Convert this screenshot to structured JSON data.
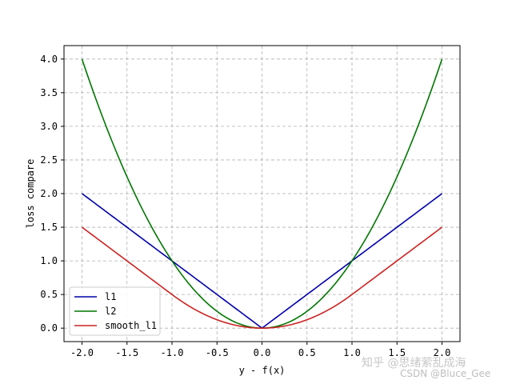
{
  "chart_data": {
    "type": "line",
    "xlabel": "y - f(x)",
    "ylabel": "loss compare",
    "xlim": [
      -2.2,
      2.2
    ],
    "ylim": [
      -0.2,
      4.2
    ],
    "xticks": [
      "-2.0",
      "-1.5",
      "-1.0",
      "-0.5",
      "0.0",
      "0.5",
      "1.0",
      "1.5",
      "2.0"
    ],
    "xtick_values": [
      -2.0,
      -1.5,
      -1.0,
      -0.5,
      0.0,
      0.5,
      1.0,
      1.5,
      2.0
    ],
    "yticks": [
      "0.0",
      "0.5",
      "1.0",
      "1.5",
      "2.0",
      "2.5",
      "3.0",
      "3.5",
      "4.0"
    ],
    "ytick_values": [
      0.0,
      0.5,
      1.0,
      1.5,
      2.0,
      2.5,
      3.0,
      3.5,
      4.0
    ],
    "grid": true,
    "legend_position": "lower-left",
    "x": [
      -2.0,
      -1.75,
      -1.5,
      -1.25,
      -1.0,
      -0.75,
      -0.5,
      -0.25,
      0.0,
      0.25,
      0.5,
      0.75,
      1.0,
      1.25,
      1.5,
      1.75,
      2.0
    ],
    "series": [
      {
        "name": "l1",
        "color": "#0000aa",
        "values": [
          2.0,
          1.75,
          1.5,
          1.25,
          1.0,
          0.75,
          0.5,
          0.25,
          0.0,
          0.25,
          0.5,
          0.75,
          1.0,
          1.25,
          1.5,
          1.75,
          2.0
        ]
      },
      {
        "name": "l2",
        "color": "#007700",
        "values": [
          4.0,
          3.0625,
          2.25,
          1.5625,
          1.0,
          0.5625,
          0.25,
          0.0625,
          0.0,
          0.0625,
          0.25,
          0.5625,
          1.0,
          1.5625,
          2.25,
          3.0625,
          4.0
        ]
      },
      {
        "name": "smooth_l1",
        "color": "#cc2222",
        "values": [
          1.5,
          1.25,
          1.0,
          0.75,
          0.5,
          0.28125,
          0.125,
          0.03125,
          0.0,
          0.03125,
          0.125,
          0.28125,
          0.5,
          0.75,
          1.0,
          1.25,
          1.5
        ]
      }
    ]
  },
  "watermark": {
    "main": "知乎 @思绪萦乱成海",
    "sub": "CSDN @Bluce_Gee"
  }
}
